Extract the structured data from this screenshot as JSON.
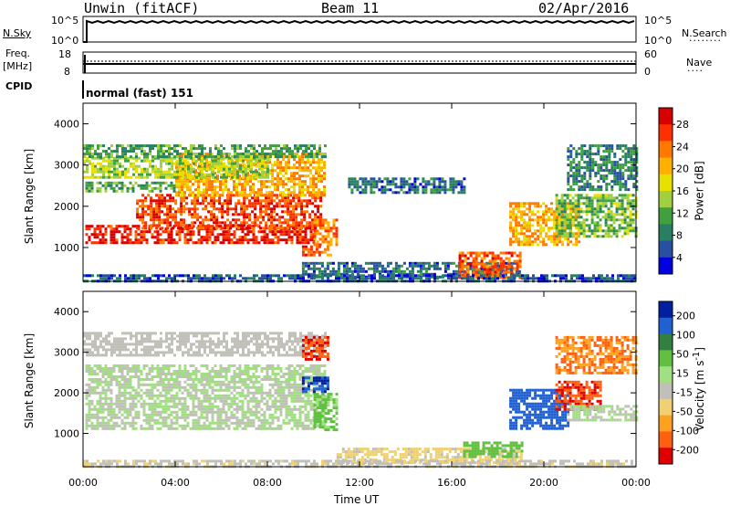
{
  "header": {
    "station": "Unwin (fitACF)",
    "beam": "Beam 11",
    "date": "02/Apr/2016"
  },
  "panels": {
    "nsky": {
      "label": "N.Sky",
      "ticks_left": [
        "10^5",
        "10^0"
      ],
      "ticks_right": [
        "10^5",
        "10^0"
      ],
      "right_label": "N.Search"
    },
    "freq": {
      "label1": "Freq.",
      "label2": "[MHz]",
      "ticks_left": [
        "18",
        "8"
      ],
      "ticks_right": [
        "60",
        "0"
      ],
      "right_label": "Nave"
    },
    "cpid": {
      "label": "CPID",
      "value": "normal (fast) 151"
    }
  },
  "chart_data": [
    {
      "type": "heatmap",
      "quantity": "power",
      "ylabel": "Slant Range [km]",
      "yticks": [
        "4000",
        "3000",
        "2000",
        "1000"
      ],
      "ylim": [
        180,
        4500
      ],
      "xticks": [
        "00:00",
        "04:00",
        "08:00",
        "12:00",
        "16:00",
        "20:00",
        "00:00"
      ],
      "xlim_hours": [
        0,
        24
      ],
      "colorbar": {
        "label": "Power [dB]",
        "ticks": [
          "28",
          "24",
          "20",
          "16",
          "12",
          "8",
          "4"
        ],
        "range": [
          0,
          30
        ],
        "colors": [
          "#d80000",
          "#ff3000",
          "#ff7800",
          "#ffb000",
          "#e8e000",
          "#a0d040",
          "#40a040",
          "#288060",
          "#2850a0",
          "#0000e0"
        ]
      },
      "regions": [
        {
          "t0": 0.1,
          "t1": 10.0,
          "r0": 1100,
          "r1": 1550,
          "v": 27
        },
        {
          "t0": 2.3,
          "t1": 10.3,
          "r0": 1500,
          "r1": 2300,
          "v": 25
        },
        {
          "t0": 4.0,
          "t1": 10.5,
          "r0": 2300,
          "r1": 3300,
          "v": 20
        },
        {
          "t0": 0.0,
          "t1": 8.0,
          "r0": 2700,
          "r1": 3200,
          "v": 14
        },
        {
          "t0": 0.0,
          "t1": 10.5,
          "r0": 3200,
          "r1": 3500,
          "v": 10
        },
        {
          "t0": 0.1,
          "t1": 4.0,
          "r0": 2350,
          "r1": 2600,
          "v": 11
        },
        {
          "t0": 10.0,
          "t1": 11.0,
          "r0": 1100,
          "r1": 1700,
          "v": 22
        },
        {
          "t0": 9.5,
          "t1": 10.8,
          "r0": 800,
          "r1": 1050,
          "v": 24
        },
        {
          "t0": 9.5,
          "t1": 19.0,
          "r0": 300,
          "r1": 650,
          "v": 6
        },
        {
          "t0": 16.3,
          "t1": 19.0,
          "r0": 300,
          "r1": 900,
          "v": 24
        },
        {
          "t0": 18.5,
          "t1": 21.5,
          "r0": 1100,
          "r1": 2100,
          "v": 20
        },
        {
          "t0": 20.5,
          "t1": 24.0,
          "r0": 1300,
          "r1": 2300,
          "v": 12
        },
        {
          "t0": 21.0,
          "t1": 24.0,
          "r0": 2400,
          "r1": 3500,
          "v": 8
        },
        {
          "t0": 11.5,
          "t1": 16.5,
          "r0": 2350,
          "r1": 2700,
          "v": 6
        },
        {
          "t0": 0.0,
          "t1": 24.0,
          "r0": 180,
          "r1": 350,
          "v": 5
        }
      ]
    },
    {
      "type": "heatmap",
      "quantity": "velocity",
      "ylabel": "Slant Range [km]",
      "yticks": [
        "4000",
        "3000",
        "2000",
        "1000"
      ],
      "ylim": [
        180,
        4500
      ],
      "xticks": [
        "00:00",
        "04:00",
        "08:00",
        "12:00",
        "16:00",
        "20:00",
        "00:00"
      ],
      "xlim_hours": [
        0,
        24
      ],
      "xlabel": "Time UT",
      "colorbar": {
        "label": "Velocity [m s^-1]",
        "ticks": [
          "200",
          "100",
          "50",
          "15",
          "-15",
          "-50",
          "-100",
          "-200"
        ],
        "range": [
          -250,
          250
        ],
        "colors": [
          "#0020a0",
          "#2060d0",
          "#308040",
          "#60c040",
          "#a0e080",
          "#c0c0b8",
          "#f0d070",
          "#ffa020",
          "#ff6010",
          "#e00000"
        ]
      },
      "regions": [
        {
          "t0": 0.1,
          "t1": 10.5,
          "r0": 1100,
          "r1": 2300,
          "v": 0
        },
        {
          "t0": 0.1,
          "t1": 10.5,
          "r0": 2300,
          "r1": 2700,
          "v": 5
        },
        {
          "t0": 0.0,
          "t1": 10.5,
          "r0": 2900,
          "r1": 3500,
          "v": -30
        },
        {
          "t0": 10.0,
          "t1": 11.0,
          "r0": 1100,
          "r1": 2000,
          "v": 60
        },
        {
          "t0": 9.5,
          "t1": 10.6,
          "r0": 2000,
          "r1": 2400,
          "v": 200
        },
        {
          "t0": 9.5,
          "t1": 10.6,
          "r0": 2800,
          "r1": 3400,
          "v": -200
        },
        {
          "t0": 11.0,
          "t1": 19.0,
          "r0": 300,
          "r1": 650,
          "v": -60
        },
        {
          "t0": 16.5,
          "t1": 19.0,
          "r0": 400,
          "r1": 800,
          "v": 80
        },
        {
          "t0": 18.5,
          "t1": 21.0,
          "r0": 1100,
          "r1": 2100,
          "v": 180
        },
        {
          "t0": 20.5,
          "t1": 22.5,
          "r0": 1600,
          "r1": 2300,
          "v": -200
        },
        {
          "t0": 21.0,
          "t1": 24.0,
          "r0": 1300,
          "r1": 1700,
          "v": 0
        },
        {
          "t0": 20.5,
          "t1": 24.0,
          "r0": 2500,
          "r1": 3400,
          "v": -150
        },
        {
          "t0": 0.0,
          "t1": 24.0,
          "r0": 180,
          "r1": 350,
          "v": -40
        }
      ]
    }
  ]
}
